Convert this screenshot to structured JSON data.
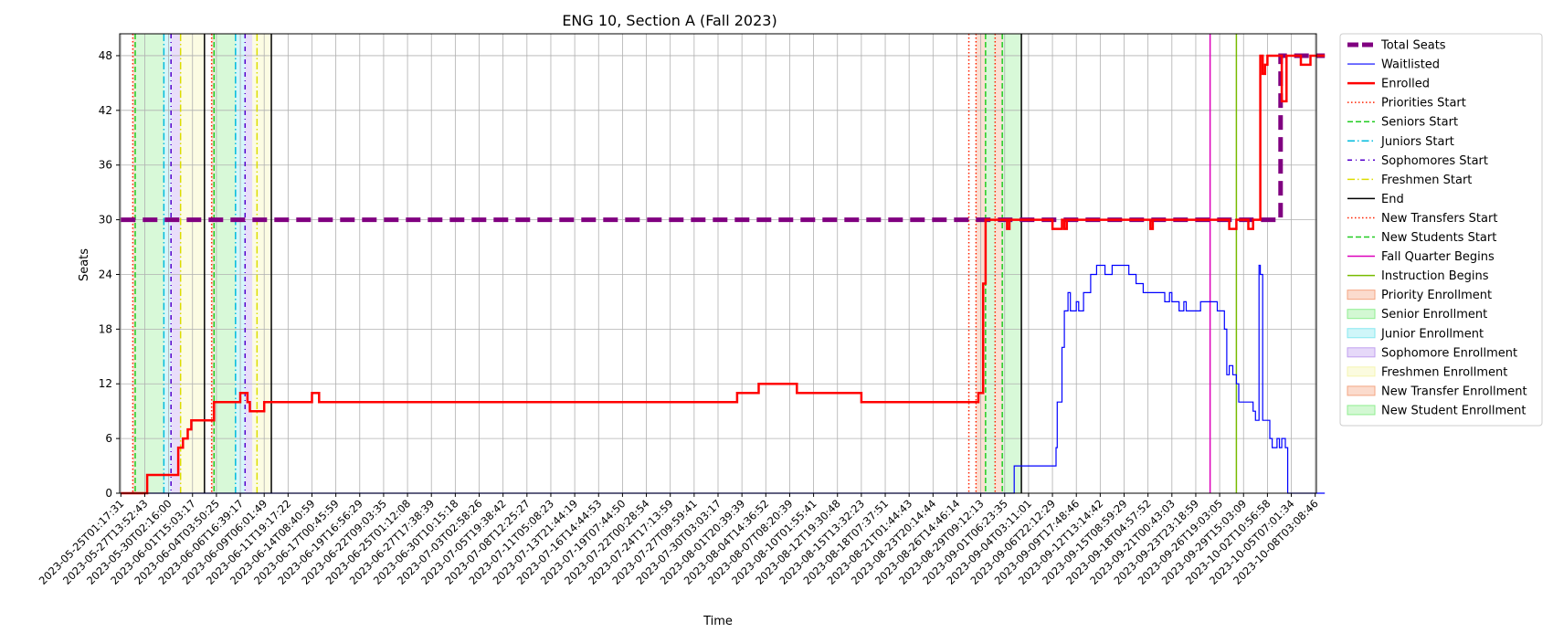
{
  "chart_data": {
    "type": "line",
    "title": "ENG 10, Section A (Fall 2023)",
    "xlabel": "Time",
    "ylabel": "Seats",
    "ylim": [
      0,
      50.4
    ],
    "yticks": [
      0,
      6,
      12,
      18,
      24,
      30,
      36,
      42,
      48
    ],
    "grid": true,
    "legend_position": "outside-right",
    "xticks": [
      "2023-05-25T01:17:31",
      "2023-05-27T13:52:43",
      "2023-05-30T02:16:00",
      "2023-06-01T15:03:17",
      "2023-06-04T03:50:25",
      "2023-06-06T16:39:17",
      "2023-06-09T06:01:49",
      "2023-06-11T19:17:22",
      "2023-06-14T08:40:59",
      "2023-06-17T00:45:59",
      "2023-06-19T16:56:29",
      "2023-06-22T09:03:35",
      "2023-06-25T01:12:08",
      "2023-06-27T17:38:39",
      "2023-06-30T10:15:18",
      "2023-07-03T02:58:26",
      "2023-07-05T19:38:42",
      "2023-07-08T12:25:27",
      "2023-07-11T05:08:23",
      "2023-07-13T21:44:19",
      "2023-07-16T14:44:53",
      "2023-07-19T07:44:50",
      "2023-07-22T00:28:54",
      "2023-07-24T17:13:59",
      "2023-07-27T09:59:41",
      "2023-07-30T03:03:17",
      "2023-08-01T20:39:39",
      "2023-08-04T14:36:52",
      "2023-08-07T08:20:39",
      "2023-08-10T01:55:41",
      "2023-08-12T19:30:48",
      "2023-08-15T13:32:23",
      "2023-08-18T07:37:51",
      "2023-08-21T01:44:43",
      "2023-08-23T20:14:44",
      "2023-08-26T14:46:14",
      "2023-08-29T09:12:13",
      "2023-09-01T06:23:35",
      "2023-09-04T03:11:01",
      "2023-09-06T22:12:29",
      "2023-09-09T17:48:46",
      "2023-09-12T13:14:42",
      "2023-09-15T08:59:29",
      "2023-09-18T04:57:52",
      "2023-09-21T00:43:03",
      "2023-09-23T23:18:59",
      "2023-09-26T19:03:05",
      "2023-09-29T15:03:09",
      "2023-10-02T10:56:58",
      "2023-10-05T07:01:34",
      "2023-10-08T03:08:46"
    ],
    "series": [
      {
        "name": "Total Seats",
        "color": "#800080",
        "style": "dashed",
        "values": [
          [
            0,
            30
          ],
          [
            48.2,
            30
          ],
          [
            48.55,
            48
          ],
          [
            50.4,
            48
          ]
        ]
      },
      {
        "name": "Waitlisted",
        "color": "#0000ff",
        "style": "solid",
        "values": [
          [
            0,
            0
          ],
          [
            37.1,
            0
          ],
          [
            37.4,
            3
          ],
          [
            39.1,
            3
          ],
          [
            39.15,
            5
          ],
          [
            39.2,
            10
          ],
          [
            39.4,
            16
          ],
          [
            39.5,
            20
          ],
          [
            39.65,
            22
          ],
          [
            39.75,
            20
          ],
          [
            40,
            21
          ],
          [
            40.1,
            20
          ],
          [
            40.3,
            22
          ],
          [
            40.6,
            24
          ],
          [
            40.85,
            25
          ],
          [
            41.2,
            24
          ],
          [
            41.5,
            25
          ],
          [
            42.0,
            25
          ],
          [
            42.2,
            24
          ],
          [
            42.5,
            23
          ],
          [
            42.8,
            22
          ],
          [
            43.2,
            22
          ],
          [
            43.6,
            22
          ],
          [
            43.7,
            21
          ],
          [
            43.9,
            22
          ],
          [
            44.0,
            21
          ],
          [
            44.3,
            20
          ],
          [
            44.5,
            21
          ],
          [
            44.6,
            20
          ],
          [
            45.0,
            20
          ],
          [
            45.2,
            21
          ],
          [
            45.8,
            21
          ],
          [
            45.9,
            20
          ],
          [
            46.1,
            20
          ],
          [
            46.2,
            18
          ],
          [
            46.3,
            13
          ],
          [
            46.4,
            14
          ],
          [
            46.55,
            13
          ],
          [
            46.7,
            12
          ],
          [
            46.8,
            10
          ],
          [
            47.3,
            10
          ],
          [
            47.4,
            9
          ],
          [
            47.5,
            8
          ],
          [
            47.6,
            8
          ],
          [
            47.65,
            25
          ],
          [
            47.7,
            24
          ],
          [
            47.8,
            8
          ],
          [
            48.0,
            8
          ],
          [
            48.1,
            6
          ],
          [
            48.2,
            5
          ],
          [
            48.4,
            6
          ],
          [
            48.5,
            5
          ],
          [
            48.6,
            6
          ],
          [
            48.75,
            5
          ],
          [
            48.85,
            0
          ],
          [
            50.4,
            0
          ]
        ]
      },
      {
        "name": "Enrolled",
        "color": "#ff0000",
        "style": "solid",
        "values": [
          [
            0,
            0
          ],
          [
            1.0,
            0
          ],
          [
            1.1,
            2
          ],
          [
            2.2,
            2
          ],
          [
            2.4,
            5
          ],
          [
            2.6,
            6
          ],
          [
            2.8,
            7
          ],
          [
            2.95,
            8
          ],
          [
            3.8,
            8
          ],
          [
            3.9,
            10
          ],
          [
            4.8,
            10
          ],
          [
            5.0,
            11
          ],
          [
            5.3,
            10
          ],
          [
            5.4,
            9
          ],
          [
            6.0,
            10
          ],
          [
            7.9,
            10
          ],
          [
            8.0,
            11
          ],
          [
            8.3,
            10
          ],
          [
            25.7,
            10
          ],
          [
            25.8,
            11
          ],
          [
            26.6,
            11
          ],
          [
            26.7,
            12
          ],
          [
            28.2,
            12
          ],
          [
            28.3,
            11
          ],
          [
            30.9,
            11
          ],
          [
            31.0,
            10
          ],
          [
            35.8,
            10
          ],
          [
            35.9,
            11
          ],
          [
            36.1,
            23
          ],
          [
            36.2,
            30
          ],
          [
            37.0,
            30
          ],
          [
            37.1,
            29
          ],
          [
            37.2,
            30
          ],
          [
            38.0,
            30
          ],
          [
            38.3,
            30
          ],
          [
            39.0,
            29
          ],
          [
            39.4,
            30
          ],
          [
            39.5,
            29
          ],
          [
            39.6,
            30
          ],
          [
            43.0,
            30
          ],
          [
            43.1,
            29
          ],
          [
            43.2,
            30
          ],
          [
            45.7,
            30
          ],
          [
            46.4,
            29
          ],
          [
            46.7,
            30
          ],
          [
            47.0,
            30
          ],
          [
            47.2,
            29
          ],
          [
            47.4,
            30
          ],
          [
            47.6,
            30
          ],
          [
            47.7,
            48
          ],
          [
            47.8,
            46
          ],
          [
            47.9,
            47
          ],
          [
            48.0,
            48
          ],
          [
            48.5,
            48
          ],
          [
            48.6,
            43
          ],
          [
            48.8,
            48
          ],
          [
            49.3,
            48
          ],
          [
            49.4,
            47
          ],
          [
            49.8,
            48
          ],
          [
            50.4,
            48
          ]
        ]
      }
    ],
    "event_lines": [
      {
        "name": "Priorities Start",
        "color": "#ff2200",
        "style": "dotted",
        "x": [
          0.5,
          3.8,
          35.8
        ]
      },
      {
        "name": "Seniors Start",
        "color": "#22cc22",
        "style": "dashed",
        "x": [
          0.6,
          3.9,
          36.2
        ]
      },
      {
        "name": "Juniors Start",
        "color": "#00bbdd",
        "style": "dashdot",
        "x": [
          1.8,
          4.8
        ]
      },
      {
        "name": "Sophomores Start",
        "color": "#5500cc",
        "style": "dashdot2",
        "x": [
          2.1,
          5.2
        ]
      },
      {
        "name": "Freshmen Start",
        "color": "#dddd00",
        "style": "dashdot",
        "x": [
          2.5,
          5.7
        ]
      },
      {
        "name": "End",
        "color": "#000000",
        "style": "solid",
        "x": [
          3.5,
          6.3,
          37.7
        ]
      },
      {
        "name": "New Transfers Start",
        "color": "#ff2200",
        "style": "dotted",
        "x": [
          35.5,
          36.6
        ]
      },
      {
        "name": "New Students Start",
        "color": "#22cc22",
        "style": "dashed",
        "x": [
          36.9
        ]
      },
      {
        "name": "Fall Quarter Begins",
        "color": "#dd00bb",
        "style": "solid",
        "x": [
          45.6
        ]
      },
      {
        "name": "Instruction Begins",
        "color": "#77bb00",
        "style": "solid",
        "x": [
          46.7
        ]
      }
    ],
    "regions": [
      {
        "name": "Priority Enrollment",
        "color": "#f4a582",
        "x": [
          [
            0.5,
            0.6
          ],
          [
            3.8,
            3.9
          ],
          [
            35.8,
            36.2
          ]
        ]
      },
      {
        "name": "Senior Enrollment",
        "color": "#90ee90",
        "x": [
          [
            0.6,
            1.8
          ],
          [
            3.9,
            4.8
          ],
          [
            36.2,
            36.6
          ]
        ]
      },
      {
        "name": "Junior Enrollment",
        "color": "#87e8f0",
        "x": [
          [
            1.8,
            2.1
          ],
          [
            4.8,
            5.2
          ]
        ]
      },
      {
        "name": "Sophomore Enrollment",
        "color": "#c0a0f0",
        "x": [
          [
            2.1,
            2.5
          ],
          [
            5.2,
            5.5
          ]
        ]
      },
      {
        "name": "Freshmen Enrollment",
        "color": "#f5f5b0",
        "x": [
          [
            2.5,
            3.5
          ],
          [
            5.5,
            6.3
          ]
        ]
      },
      {
        "name": "New Transfer Enrollment",
        "color": "#f4a582",
        "x": [
          [
            36.6,
            36.9
          ]
        ]
      },
      {
        "name": "New Student Enrollment",
        "color": "#90ee90",
        "x": [
          [
            36.9,
            37.7
          ]
        ]
      }
    ],
    "legend": [
      {
        "label": "Total Seats",
        "color": "#800080",
        "kind": "line",
        "style": "dashed",
        "width": 5
      },
      {
        "label": "Waitlisted",
        "color": "#0000ff",
        "kind": "line",
        "style": "solid",
        "width": 1.2
      },
      {
        "label": "Enrolled",
        "color": "#ff0000",
        "kind": "line",
        "style": "solid",
        "width": 2.5
      },
      {
        "label": "Priorities Start",
        "color": "#ff2200",
        "kind": "line",
        "style": "dotted",
        "width": 1.5
      },
      {
        "label": "Seniors Start",
        "color": "#22cc22",
        "kind": "line",
        "style": "dashed",
        "width": 1.5
      },
      {
        "label": "Juniors Start",
        "color": "#00bbdd",
        "kind": "line",
        "style": "dashdot",
        "width": 1.5
      },
      {
        "label": "Sophomores Start",
        "color": "#5500cc",
        "kind": "line",
        "style": "dashdot2",
        "width": 1.5
      },
      {
        "label": "Freshmen Start",
        "color": "#dddd00",
        "kind": "line",
        "style": "dashdot",
        "width": 1.5
      },
      {
        "label": "End",
        "color": "#000000",
        "kind": "line",
        "style": "solid",
        "width": 1.5
      },
      {
        "label": "New Transfers Start",
        "color": "#ff2200",
        "kind": "line",
        "style": "dotted",
        "width": 1.5
      },
      {
        "label": "New Students Start",
        "color": "#22cc22",
        "kind": "line",
        "style": "dashed",
        "width": 1.5
      },
      {
        "label": "Fall Quarter Begins",
        "color": "#dd00bb",
        "kind": "line",
        "style": "solid",
        "width": 1.5
      },
      {
        "label": "Instruction Begins",
        "color": "#77bb00",
        "kind": "line",
        "style": "solid",
        "width": 1.5
      },
      {
        "label": "Priority Enrollment",
        "color": "#f4a582",
        "kind": "patch"
      },
      {
        "label": "Senior Enrollment",
        "color": "#90ee90",
        "kind": "patch"
      },
      {
        "label": "Junior Enrollment",
        "color": "#87e8f0",
        "kind": "patch"
      },
      {
        "label": "Sophomore Enrollment",
        "color": "#c0a0f0",
        "kind": "patch"
      },
      {
        "label": "Freshmen Enrollment",
        "color": "#f5f5b0",
        "kind": "patch"
      },
      {
        "label": "New Transfer Enrollment",
        "color": "#f4a582",
        "kind": "patch"
      },
      {
        "label": "New Student Enrollment",
        "color": "#90ee90",
        "kind": "patch"
      }
    ]
  }
}
